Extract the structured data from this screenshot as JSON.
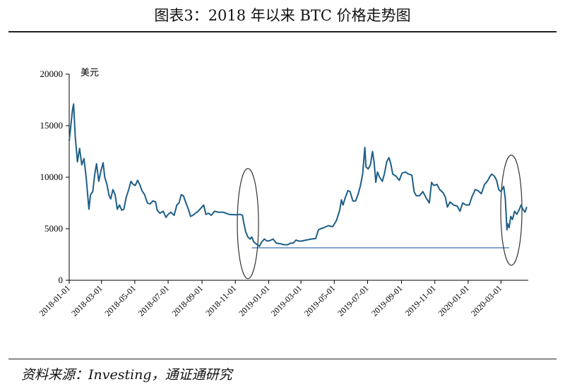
{
  "header": {
    "title": "图表3：2018 年以来 BTC 价格走势图"
  },
  "footer": {
    "source": "资料来源：Investing，通证通研究"
  },
  "colors": {
    "series": "#1e5f87",
    "support_line": "#3e6fb0",
    "ellipse": "#333333",
    "axis": "#000000"
  },
  "chart_data": {
    "type": "line",
    "title": "",
    "ylabel": "美元",
    "xlabel": "",
    "ylim": [
      0,
      20000
    ],
    "yticks": [
      0,
      5000,
      10000,
      15000,
      20000
    ],
    "xlim": [
      "2018-01-01",
      "2020-04-20"
    ],
    "xticks": [
      "2018-01-01",
      "2018-03-01",
      "2018-05-01",
      "2018-07-01",
      "2018-09-01",
      "2018-11-01",
      "2019-01-01",
      "2019-03-01",
      "2019-05-01",
      "2019-07-01",
      "2019-09-01",
      "2019-11-01",
      "2020-01-01",
      "2020-03-01"
    ],
    "grid": false,
    "series": [
      {
        "values": [
          [
            "2018-01-01",
            13500
          ],
          [
            "2018-01-04",
            15000
          ],
          [
            "2018-01-07",
            16500
          ],
          [
            "2018-01-09",
            17100
          ],
          [
            "2018-01-12",
            14000
          ],
          [
            "2018-01-16",
            11500
          ],
          [
            "2018-01-20",
            12800
          ],
          [
            "2018-01-24",
            11200
          ],
          [
            "2018-01-28",
            11800
          ],
          [
            "2018-02-01",
            10000
          ],
          [
            "2018-02-03",
            8800
          ],
          [
            "2018-02-06",
            6900
          ],
          [
            "2018-02-09",
            8300
          ],
          [
            "2018-02-13",
            8600
          ],
          [
            "2018-02-17",
            10400
          ],
          [
            "2018-02-20",
            11300
          ],
          [
            "2018-02-24",
            9600
          ],
          [
            "2018-02-28",
            10600
          ],
          [
            "2018-03-04",
            11400
          ],
          [
            "2018-03-07",
            10000
          ],
          [
            "2018-03-11",
            9300
          ],
          [
            "2018-03-15",
            8200
          ],
          [
            "2018-03-18",
            7900
          ],
          [
            "2018-03-22",
            8800
          ],
          [
            "2018-03-26",
            8300
          ],
          [
            "2018-03-30",
            6900
          ],
          [
            "2018-04-03",
            7300
          ],
          [
            "2018-04-07",
            6800
          ],
          [
            "2018-04-11",
            6900
          ],
          [
            "2018-04-15",
            8000
          ],
          [
            "2018-04-20",
            8800
          ],
          [
            "2018-04-24",
            9600
          ],
          [
            "2018-04-28",
            9300
          ],
          [
            "2018-05-02",
            9200
          ],
          [
            "2018-05-06",
            9700
          ],
          [
            "2018-05-10",
            9300
          ],
          [
            "2018-05-14",
            8700
          ],
          [
            "2018-05-19",
            8300
          ],
          [
            "2018-05-24",
            7500
          ],
          [
            "2018-05-29",
            7400
          ],
          [
            "2018-06-03",
            7700
          ],
          [
            "2018-06-08",
            7600
          ],
          [
            "2018-06-11",
            6800
          ],
          [
            "2018-06-16",
            6500
          ],
          [
            "2018-06-22",
            6700
          ],
          [
            "2018-06-27",
            6100
          ],
          [
            "2018-07-01",
            6400
          ],
          [
            "2018-07-06",
            6600
          ],
          [
            "2018-07-12",
            6300
          ],
          [
            "2018-07-17",
            7300
          ],
          [
            "2018-07-21",
            7500
          ],
          [
            "2018-07-25",
            8300
          ],
          [
            "2018-07-29",
            8200
          ],
          [
            "2018-08-02",
            7600
          ],
          [
            "2018-08-07",
            6900
          ],
          [
            "2018-08-11",
            6200
          ],
          [
            "2018-08-15",
            6300
          ],
          [
            "2018-08-20",
            6500
          ],
          [
            "2018-08-25",
            6700
          ],
          [
            "2018-08-30",
            7000
          ],
          [
            "2018-09-04",
            7300
          ],
          [
            "2018-09-08",
            6400
          ],
          [
            "2018-09-13",
            6500
          ],
          [
            "2018-09-18",
            6300
          ],
          [
            "2018-09-24",
            6700
          ],
          [
            "2018-10-01",
            6600
          ],
          [
            "2018-10-10",
            6600
          ],
          [
            "2018-10-15",
            6500
          ],
          [
            "2018-10-20",
            6400
          ],
          [
            "2018-11-01",
            6350
          ],
          [
            "2018-11-10",
            6400
          ],
          [
            "2018-11-14",
            6300
          ],
          [
            "2018-11-16",
            5700
          ],
          [
            "2018-11-20",
            4700
          ],
          [
            "2018-11-24",
            4200
          ],
          [
            "2018-11-28",
            4000
          ],
          [
            "2018-12-01",
            4200
          ],
          [
            "2018-12-05",
            3700
          ],
          [
            "2018-12-10",
            3500
          ],
          [
            "2018-12-15",
            3300
          ],
          [
            "2018-12-19",
            3700
          ],
          [
            "2018-12-24",
            4000
          ],
          [
            "2018-12-29",
            3800
          ],
          [
            "2019-01-03",
            3850
          ],
          [
            "2019-01-09",
            4000
          ],
          [
            "2019-01-15",
            3600
          ],
          [
            "2019-01-22",
            3550
          ],
          [
            "2019-01-29",
            3450
          ],
          [
            "2019-02-05",
            3450
          ],
          [
            "2019-02-10",
            3600
          ],
          [
            "2019-02-15",
            3600
          ],
          [
            "2019-02-20",
            3900
          ],
          [
            "2019-02-25",
            3800
          ],
          [
            "2019-03-02",
            3800
          ],
          [
            "2019-03-10",
            3900
          ],
          [
            "2019-03-20",
            4000
          ],
          [
            "2019-03-28",
            4050
          ],
          [
            "2019-04-02",
            4900
          ],
          [
            "2019-04-06",
            5000
          ],
          [
            "2019-04-12",
            5100
          ],
          [
            "2019-04-20",
            5300
          ],
          [
            "2019-04-28",
            5200
          ],
          [
            "2019-05-05",
            5800
          ],
          [
            "2019-05-11",
            6800
          ],
          [
            "2019-05-14",
            7800
          ],
          [
            "2019-05-17",
            7300
          ],
          [
            "2019-05-21",
            8000
          ],
          [
            "2019-05-26",
            8700
          ],
          [
            "2019-05-30",
            8600
          ],
          [
            "2019-06-04",
            7700
          ],
          [
            "2019-06-09",
            7700
          ],
          [
            "2019-06-14",
            8400
          ],
          [
            "2019-06-18",
            9200
          ],
          [
            "2019-06-22",
            10300
          ],
          [
            "2019-06-26",
            12900
          ],
          [
            "2019-06-28",
            11000
          ],
          [
            "2019-07-02",
            10800
          ],
          [
            "2019-07-06",
            11200
          ],
          [
            "2019-07-10",
            12500
          ],
          [
            "2019-07-13",
            11400
          ],
          [
            "2019-07-16",
            9500
          ],
          [
            "2019-07-19",
            10500
          ],
          [
            "2019-07-23",
            10000
          ],
          [
            "2019-07-28",
            9600
          ],
          [
            "2019-08-01",
            10400
          ],
          [
            "2019-08-05",
            11500
          ],
          [
            "2019-08-09",
            11900
          ],
          [
            "2019-08-12",
            11400
          ],
          [
            "2019-08-16",
            10300
          ],
          [
            "2019-08-22",
            10100
          ],
          [
            "2019-08-28",
            9700
          ],
          [
            "2019-09-02",
            10400
          ],
          [
            "2019-09-08",
            10500
          ],
          [
            "2019-09-14",
            10300
          ],
          [
            "2019-09-20",
            10200
          ],
          [
            "2019-09-24",
            8600
          ],
          [
            "2019-09-28",
            8200
          ],
          [
            "2019-10-04",
            8200
          ],
          [
            "2019-10-10",
            8600
          ],
          [
            "2019-10-16",
            8000
          ],
          [
            "2019-10-22",
            7500
          ],
          [
            "2019-10-26",
            9500
          ],
          [
            "2019-10-30",
            9200
          ],
          [
            "2019-11-05",
            9300
          ],
          [
            "2019-11-10",
            8800
          ],
          [
            "2019-11-16",
            8500
          ],
          [
            "2019-11-20",
            8100
          ],
          [
            "2019-11-24",
            7100
          ],
          [
            "2019-11-29",
            7600
          ],
          [
            "2019-12-05",
            7300
          ],
          [
            "2019-12-12",
            7200
          ],
          [
            "2019-12-17",
            6700
          ],
          [
            "2019-12-22",
            7500
          ],
          [
            "2019-12-28",
            7300
          ],
          [
            "2020-01-03",
            7300
          ],
          [
            "2020-01-08",
            8100
          ],
          [
            "2020-01-14",
            8800
          ],
          [
            "2020-01-19",
            8700
          ],
          [
            "2020-01-25",
            8400
          ],
          [
            "2020-01-31",
            9300
          ],
          [
            "2020-02-05",
            9600
          ],
          [
            "2020-02-09",
            10000
          ],
          [
            "2020-02-13",
            10300
          ],
          [
            "2020-02-18",
            10100
          ],
          [
            "2020-02-22",
            9700
          ],
          [
            "2020-02-26",
            8800
          ],
          [
            "2020-03-01",
            8600
          ],
          [
            "2020-03-06",
            9100
          ],
          [
            "2020-03-09",
            7900
          ],
          [
            "2020-03-12",
            4900
          ],
          [
            "2020-03-13",
            5500
          ],
          [
            "2020-03-16",
            5100
          ],
          [
            "2020-03-19",
            6200
          ],
          [
            "2020-03-22",
            5900
          ],
          [
            "2020-03-26",
            6700
          ],
          [
            "2020-03-30",
            6400
          ],
          [
            "2020-04-03",
            6800
          ],
          [
            "2020-04-07",
            7300
          ],
          [
            "2020-04-10",
            6900
          ],
          [
            "2020-04-14",
            6600
          ],
          [
            "2020-04-17",
            7100
          ]
        ]
      }
    ],
    "annotations": [
      {
        "type": "hline",
        "y": 3150,
        "from": "2018-12-01",
        "to": "2020-03-16"
      },
      {
        "type": "ellipse",
        "x_center": "2018-11-24",
        "y_center": 5500
      },
      {
        "type": "ellipse",
        "x_center": "2020-03-20",
        "y_center": 6800
      }
    ]
  }
}
